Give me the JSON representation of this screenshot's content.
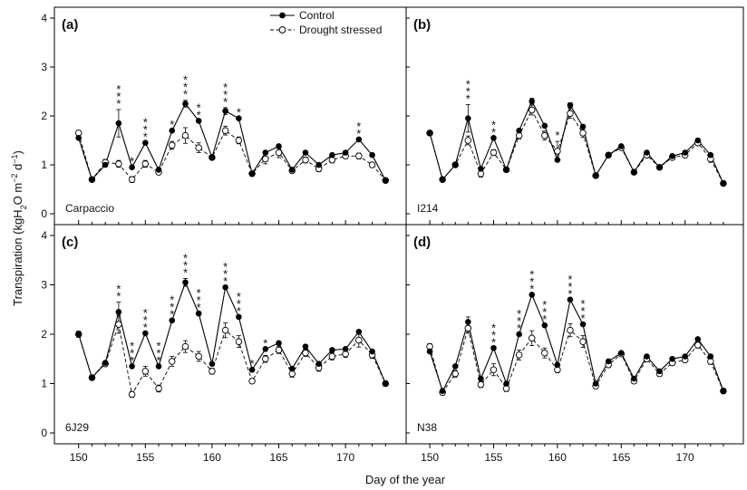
{
  "figure": {
    "ylabel_main": "Transpiration (kgH",
    "ylabel_sub": "2",
    "ylabel_mid": "O m",
    "ylabel_sup1": "−2",
    "ylabel_mid2": " d",
    "ylabel_sup2": "−1",
    "ylabel_end": ")",
    "xlabel": "Day of the year",
    "legend": {
      "control": "Control",
      "drought": "Drought stressed"
    }
  },
  "chart_data": [
    {
      "type": "line",
      "panel": "(a)",
      "cultivar": "Carpaccio",
      "x": [
        150,
        151,
        152,
        153,
        154,
        155,
        156,
        157,
        158,
        159,
        160,
        161,
        162,
        163,
        164,
        165,
        166,
        167,
        168,
        169,
        170,
        171,
        172,
        173
      ],
      "series": [
        {
          "name": "Control",
          "values": [
            1.55,
            0.7,
            1.0,
            1.85,
            0.95,
            1.45,
            0.9,
            1.7,
            2.25,
            1.9,
            1.15,
            2.1,
            1.95,
            0.82,
            1.25,
            1.38,
            0.9,
            1.25,
            1.0,
            1.2,
            1.25,
            1.52,
            1.2,
            0.68
          ],
          "err": [
            0,
            0,
            0,
            0.28,
            0,
            0,
            0,
            0,
            0.07,
            0,
            0,
            0.07,
            0,
            0,
            0,
            0,
            0,
            0,
            0,
            0,
            0,
            0,
            0,
            0
          ]
        },
        {
          "name": "Drought stressed",
          "values": [
            1.65,
            0.7,
            1.05,
            1.02,
            0.7,
            1.02,
            0.85,
            1.4,
            1.6,
            1.35,
            1.15,
            1.7,
            1.5,
            0.82,
            1.12,
            1.25,
            0.88,
            1.1,
            0.92,
            1.1,
            1.18,
            1.18,
            1.0,
            0.68
          ],
          "err": [
            0.05,
            0,
            0.06,
            0.07,
            0.06,
            0.07,
            0.05,
            0.08,
            0.16,
            0.1,
            0,
            0.09,
            0.07,
            0,
            0.1,
            0.1,
            0.05,
            0.06,
            0.06,
            0.06,
            0.05,
            0.06,
            0.05,
            0
          ]
        }
      ],
      "significance": [
        {
          "x": 153,
          "mark": "***"
        },
        {
          "x": 154,
          "mark": "*"
        },
        {
          "x": 155,
          "mark": "***"
        },
        {
          "x": 157,
          "mark": "*"
        },
        {
          "x": 158,
          "mark": "***"
        },
        {
          "x": 159,
          "mark": "**"
        },
        {
          "x": 161,
          "mark": "***"
        },
        {
          "x": 162,
          "mark": "*"
        },
        {
          "x": 171,
          "mark": "**"
        }
      ],
      "xlim": [
        149,
        174
      ],
      "ylim": [
        0,
        4
      ],
      "yticks": [
        0,
        1,
        2,
        3,
        4
      ],
      "xticks": [
        150,
        155,
        160,
        165,
        170
      ]
    },
    {
      "type": "line",
      "panel": "(b)",
      "cultivar": "I214",
      "x": [
        150,
        151,
        152,
        153,
        154,
        155,
        156,
        157,
        158,
        159,
        160,
        161,
        162,
        163,
        164,
        165,
        166,
        167,
        168,
        169,
        170,
        171,
        172,
        173
      ],
      "series": [
        {
          "name": "Control",
          "values": [
            1.65,
            0.7,
            1.0,
            1.95,
            0.92,
            1.55,
            0.9,
            1.7,
            2.3,
            1.8,
            1.1,
            2.22,
            1.78,
            0.78,
            1.2,
            1.38,
            0.85,
            1.25,
            0.95,
            1.18,
            1.25,
            1.5,
            1.2,
            0.62
          ],
          "err": [
            0,
            0,
            0,
            0.28,
            0,
            0,
            0,
            0,
            0.06,
            0,
            0,
            0.05,
            0,
            0,
            0,
            0,
            0,
            0,
            0,
            0,
            0,
            0,
            0,
            0
          ]
        },
        {
          "name": "Drought stressed",
          "values": [
            1.65,
            0.7,
            1.0,
            1.5,
            0.82,
            1.25,
            0.9,
            1.6,
            2.12,
            1.6,
            1.28,
            2.05,
            1.65,
            0.78,
            1.2,
            1.35,
            0.85,
            1.2,
            0.95,
            1.15,
            1.2,
            1.45,
            1.12,
            0.62
          ],
          "err": [
            0.05,
            0,
            0,
            0.09,
            0.07,
            0.06,
            0,
            0.07,
            0.1,
            0.09,
            0.2,
            0.1,
            0.09,
            0,
            0,
            0,
            0,
            0.05,
            0,
            0,
            0.05,
            0.05,
            0.07,
            0
          ]
        }
      ],
      "significance": [
        {
          "x": 153,
          "mark": "***"
        },
        {
          "x": 155,
          "mark": "**"
        },
        {
          "x": 160,
          "mark": "*"
        }
      ],
      "xlim": [
        149,
        174
      ],
      "ylim": [
        0,
        4
      ],
      "yticks": [
        0,
        1,
        2,
        3,
        4
      ],
      "xticks": [
        150,
        155,
        160,
        165,
        170
      ]
    },
    {
      "type": "line",
      "panel": "(c)",
      "cultivar": "6J29",
      "x": [
        150,
        151,
        152,
        153,
        154,
        155,
        156,
        157,
        158,
        159,
        160,
        161,
        162,
        163,
        164,
        165,
        166,
        167,
        168,
        169,
        170,
        171,
        172,
        173
      ],
      "series": [
        {
          "name": "Control",
          "values": [
            2.0,
            1.12,
            1.42,
            2.45,
            1.35,
            2.02,
            1.35,
            2.28,
            3.05,
            2.42,
            1.4,
            2.95,
            2.35,
            1.28,
            1.7,
            1.82,
            1.3,
            1.75,
            1.4,
            1.68,
            1.7,
            2.05,
            1.65,
            1.0
          ],
          "err": [
            0.06,
            0,
            0,
            0.2,
            0,
            0,
            0,
            0,
            0.08,
            0,
            0,
            0,
            0,
            0,
            0,
            0,
            0,
            0,
            0,
            0,
            0,
            0,
            0,
            0
          ]
        },
        {
          "name": "Drought stressed",
          "values": [
            2.0,
            1.12,
            1.4,
            2.2,
            0.78,
            1.25,
            0.9,
            1.45,
            1.75,
            1.55,
            1.25,
            2.08,
            1.85,
            1.05,
            1.5,
            1.68,
            1.2,
            1.62,
            1.32,
            1.55,
            1.6,
            1.88,
            1.58,
            1.0
          ],
          "err": [
            0.06,
            0,
            0.05,
            0.18,
            0.06,
            0.1,
            0.07,
            0.1,
            0.12,
            0.1,
            0.06,
            0.15,
            0.12,
            0.05,
            0.07,
            0.07,
            0.07,
            0.07,
            0.07,
            0.07,
            0.07,
            0.14,
            0.07,
            0.05
          ]
        }
      ],
      "significance": [
        {
          "x": 153,
          "mark": "**"
        },
        {
          "x": 154,
          "mark": "***"
        },
        {
          "x": 155,
          "mark": "***"
        },
        {
          "x": 156,
          "mark": "***"
        },
        {
          "x": 157,
          "mark": "***"
        },
        {
          "x": 158,
          "mark": "***"
        },
        {
          "x": 159,
          "mark": "***"
        },
        {
          "x": 161,
          "mark": "***"
        },
        {
          "x": 162,
          "mark": "***"
        },
        {
          "x": 163,
          "mark": "*"
        },
        {
          "x": 164,
          "mark": "*"
        }
      ],
      "xlim": [
        149,
        174
      ],
      "ylim": [
        0,
        4
      ],
      "yticks": [
        0,
        1,
        2,
        3,
        4
      ],
      "xticks": [
        150,
        155,
        160,
        165,
        170
      ]
    },
    {
      "type": "line",
      "panel": "(d)",
      "cultivar": "N38",
      "x": [
        150,
        151,
        152,
        153,
        154,
        155,
        156,
        157,
        158,
        159,
        160,
        161,
        162,
        163,
        164,
        165,
        166,
        167,
        168,
        169,
        170,
        171,
        172,
        173
      ],
      "series": [
        {
          "name": "Control",
          "values": [
            1.65,
            0.85,
            1.35,
            2.25,
            1.1,
            1.72,
            1.0,
            2.0,
            2.8,
            2.18,
            1.38,
            2.7,
            2.2,
            1.0,
            1.45,
            1.62,
            1.1,
            1.55,
            1.25,
            1.5,
            1.55,
            1.9,
            1.55,
            0.85
          ],
          "err": [
            0,
            0,
            0,
            0.1,
            0,
            0,
            0,
            0,
            0,
            0,
            0,
            0,
            0,
            0,
            0,
            0,
            0,
            0,
            0,
            0,
            0,
            0,
            0,
            0
          ]
        },
        {
          "name": "Drought stressed",
          "values": [
            1.75,
            0.82,
            1.2,
            2.12,
            0.98,
            1.28,
            0.9,
            1.58,
            1.92,
            1.62,
            1.28,
            2.08,
            1.85,
            0.95,
            1.38,
            1.6,
            1.05,
            1.5,
            1.2,
            1.42,
            1.48,
            1.78,
            1.45,
            0.85
          ],
          "err": [
            0.06,
            0.05,
            0.07,
            0.1,
            0.06,
            0.12,
            0.06,
            0.1,
            0.15,
            0.1,
            0.06,
            0.13,
            0.12,
            0.05,
            0.05,
            0.05,
            0.05,
            0.05,
            0.05,
            0.05,
            0.05,
            0.06,
            0.06,
            0
          ]
        }
      ],
      "significance": [
        {
          "x": 155,
          "mark": "***"
        },
        {
          "x": 157,
          "mark": "***"
        },
        {
          "x": 158,
          "mark": "***"
        },
        {
          "x": 159,
          "mark": "***"
        },
        {
          "x": 161,
          "mark": "***"
        },
        {
          "x": 162,
          "mark": "***"
        }
      ],
      "xlim": [
        149,
        174
      ],
      "ylim": [
        0,
        4
      ],
      "yticks": [
        0,
        1,
        2,
        3,
        4
      ],
      "xticks": [
        150,
        155,
        160,
        165,
        170
      ]
    }
  ]
}
